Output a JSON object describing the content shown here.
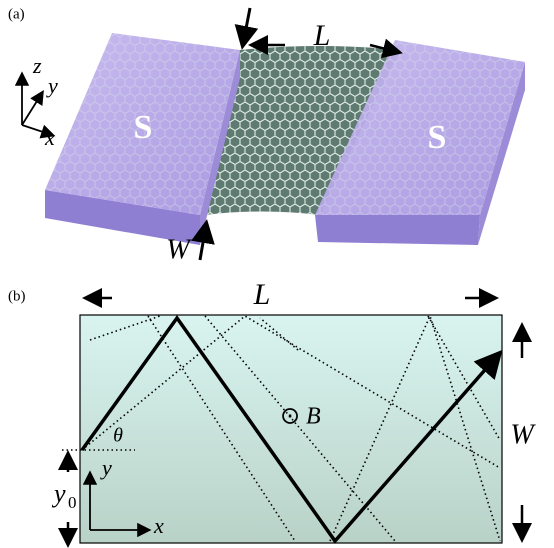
{
  "panel_a": {
    "label": "(a)",
    "left_contact": "S",
    "right_contact": "S",
    "length": "L",
    "width": "W",
    "axes": {
      "x": "x",
      "y": "y",
      "z": "z"
    }
  },
  "panel_b": {
    "label": "(b)",
    "length": "L",
    "width": "W",
    "field": "B",
    "field_symbol": "⊙",
    "angle": "θ",
    "axes": {
      "x": "x",
      "y": "y"
    },
    "offset": {
      "base": "y",
      "sub": "0"
    }
  }
}
